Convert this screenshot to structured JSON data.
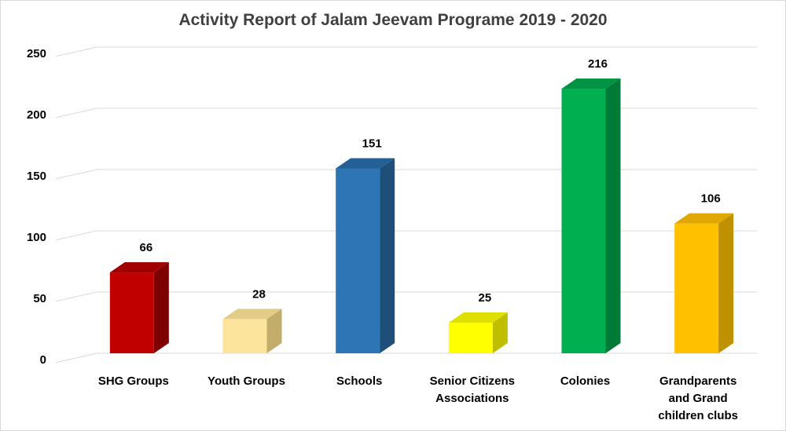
{
  "chart_data": {
    "type": "bar",
    "title": "Activity Report of Jalam Jeevam Programe 2019 - 2020",
    "categories": [
      [
        "SHG Groups"
      ],
      [
        "Youth Groups"
      ],
      [
        "Schools"
      ],
      [
        "Senior Citizens",
        "Associations"
      ],
      [
        "Colonies"
      ],
      [
        "Grandparents",
        "and Grand",
        "children clubs"
      ]
    ],
    "values": [
      66,
      28,
      151,
      25,
      216,
      106
    ],
    "value_labels": [
      "66",
      "28",
      "151",
      "25",
      "216",
      "106"
    ],
    "colors": [
      {
        "front": "#c00000",
        "side": "#7f0000",
        "top": "#a00000"
      },
      {
        "front": "#fde49c",
        "side": "#c2ad6a",
        "top": "#e3cc85"
      },
      {
        "front": "#2e75b6",
        "side": "#1f4e79",
        "top": "#245f96"
      },
      {
        "front": "#ffff00",
        "side": "#bfbf00",
        "top": "#e0e000"
      },
      {
        "front": "#00b050",
        "side": "#007a37",
        "top": "#009444"
      },
      {
        "front": "#ffc000",
        "side": "#bf9000",
        "top": "#e0a800"
      }
    ],
    "y_ticks": [
      "0",
      "50",
      "100",
      "150",
      "200",
      "250"
    ],
    "ylim": [
      0,
      250
    ],
    "grid": true,
    "legend": "none",
    "xlabel": "",
    "ylabel": ""
  }
}
